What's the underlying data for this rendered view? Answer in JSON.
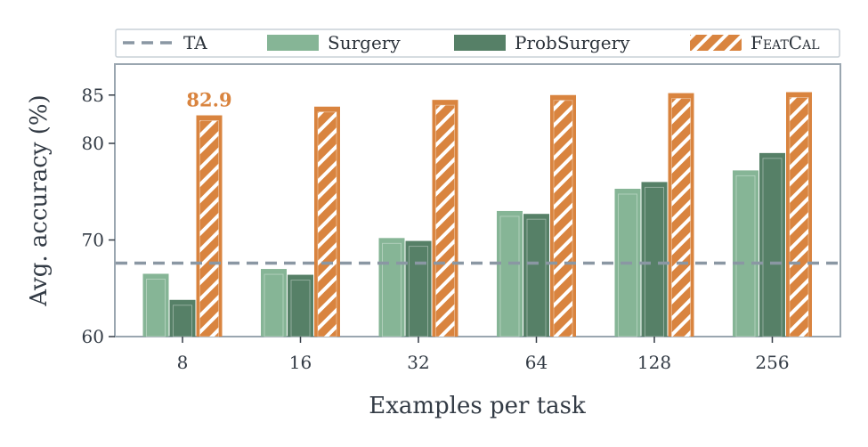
{
  "chart_data": {
    "type": "bar",
    "title": "",
    "xlabel": "Examples per task",
    "ylabel": "Avg. accuracy (%)",
    "categories": [
      "8",
      "16",
      "32",
      "64",
      "128",
      "256"
    ],
    "ylim": [
      60,
      87
    ],
    "yticks": [
      60,
      70,
      80,
      85
    ],
    "grid": false,
    "legend_position": "top",
    "series": [
      {
        "name": "Surgery",
        "color": "#86b596",
        "values": [
          66.5,
          67.0,
          70.2,
          73.0,
          75.3,
          77.2
        ]
      },
      {
        "name": "ProbSurgery",
        "color": "#568067",
        "values": [
          63.8,
          66.4,
          69.9,
          72.7,
          76.0,
          79.0
        ]
      },
      {
        "name": "FeatCal",
        "color": "#d9843f",
        "hatch": true,
        "values": [
          82.9,
          83.8,
          84.5,
          85.0,
          85.2,
          85.3
        ]
      }
    ],
    "reference_lines": [
      {
        "name": "TA",
        "y": 67.6,
        "style": "dashed",
        "color": "#8a97a3"
      }
    ],
    "annotations": [
      {
        "text": "82.9",
        "category": "8",
        "series": "FeatCal",
        "color": "#d9843f"
      }
    ]
  }
}
